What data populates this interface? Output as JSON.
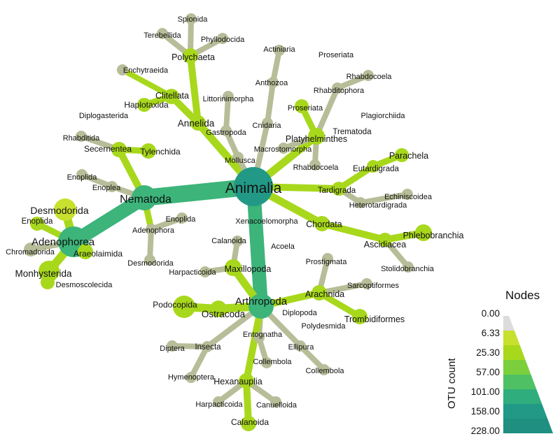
{
  "colors": {
    "grey": "#b7bd98",
    "light": "#c8e02e",
    "mid": "#a8d81c",
    "teal_mid": "#3cb47a",
    "teal": "#229987",
    "teal_dark": "#1f9a88"
  },
  "nodes": {
    "animalia": "Animalia",
    "nematoda": "Nematoda",
    "adenophorea": "Adenophorea",
    "desmodorida_a": "Desmodorida",
    "enoplida_a": "Enoplida",
    "chromadorida": "Chromadorida",
    "araeolaimida": "Araeolaimida",
    "monhysterida": "Monhysterida",
    "desmoscolecida": "Desmoscolecida",
    "secernentea": "Secernentea",
    "rhabditida": "Rhabditida",
    "tylenchida": "Tylenchida",
    "enoplida_b": "Enoplida",
    "enoplea": "Enoplea",
    "adenophora": "Adenophora",
    "enoplida_c": "Enoplida",
    "desmodorida_b": "Desmodorida",
    "annelida": "Annelida",
    "clitellata": "Clitellata",
    "enchytraeida": "Enchytraeida",
    "haplotaxida": "Haplotaxida",
    "polychaeta": "Polychaeta",
    "spionida": "Spionida",
    "terebellida": "Terebellida",
    "phyllodocida": "Phyllodocida",
    "diplogasterida": "Diplogasterida",
    "mollusca": "Mollusca",
    "gastropoda": "Gastropoda",
    "littorinimorpha": "Littorinimorpha",
    "cnidaria": "Cnidaria",
    "anthozoa": "Anthozoa",
    "actiniaria": "Actiniaria",
    "platyhelminthes": "Platyhelminthes",
    "proseriata_a": "Proseriata",
    "proseriata_b": "Proseriata",
    "rhabditophora": "Rhabditophora",
    "rhabdocoela_a": "Rhabdocoela",
    "rhabdocoela_b": "Rhabdocoela",
    "macrostomorpha": "Macrostomorpha",
    "trematoda": "Trematoda",
    "plagiorchiida": "Plagiorchiida",
    "tardigrada": "Tardigrada",
    "eutardigrada": "Eutardigrada",
    "parachela": "Parachela",
    "heterotardigrada": "Heterotardigrada",
    "echiniscoidea": "Echiniscoidea",
    "chordata": "Chordata",
    "ascidiacea": "Ascidiacea",
    "phlebobranchia": "Phlebobranchia",
    "stolidobranchia": "Stolidobranchia",
    "xenacoelomorpha": "Xenacoelomorpha",
    "acoela": "Acoela",
    "arthropoda": "Arthropoda",
    "maxillopoda": "Maxillopoda",
    "calanoida_a": "Calanoida",
    "harpacticoida_a": "Harpacticoida",
    "ostracoda": "Ostracoda",
    "podocopida": "Podocopida",
    "arachnida": "Arachnida",
    "prostigmata": "Prostigmata",
    "sarcoptiformes": "Sarcoptiformes",
    "trombidiformes": "Trombidiformes",
    "diplopoda": "Diplopoda",
    "polydesmida": "Polydesmida",
    "insecta": "Insecta",
    "diptera": "Diptera",
    "hymenoptera": "Hymenoptera",
    "entognatha": "Entognatha",
    "collembola_a": "Collembola",
    "ellipura": "Ellipura",
    "collembola_b": "Collembola",
    "hexanauplia": "Hexanauplia",
    "harpacticoida_b": "Harpacticoida",
    "canuelloida": "Canuelloida",
    "calanoida_b": "Calanoida"
  },
  "legend": {
    "title": "Nodes",
    "axis_label": "OTU count",
    "values": [
      "0.00",
      "6.33",
      "25.30",
      "57.00",
      "101.00",
      "158.00",
      "228.00"
    ],
    "colors": [
      "#dcdcdc",
      "#c8e02e",
      "#a8d81c",
      "#7ccf3c",
      "#4fc164",
      "#30ad7c",
      "#229987",
      "#1e8f80"
    ]
  }
}
